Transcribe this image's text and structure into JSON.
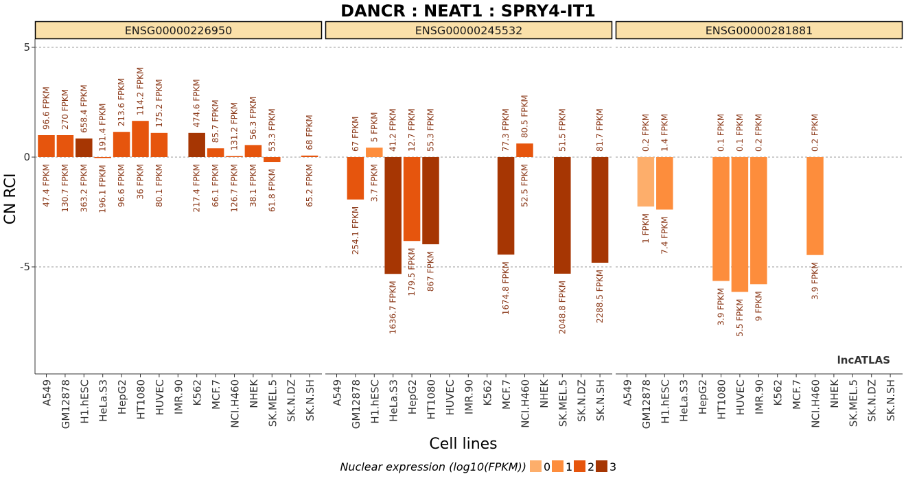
{
  "chart_data": {
    "type": "bar",
    "title": "DANCR : NEAT1 : SPRY4-IT1",
    "xlabel": "Cell lines",
    "ylabel": "CN RCI",
    "ylim": [
      -10,
      5.3
    ],
    "yticks": [
      5,
      0,
      -5
    ],
    "ytick_labels": [
      "5",
      "0",
      "-5"
    ],
    "grid": "horizontal dashed at ticks",
    "watermark": "lncATLAS",
    "legend": {
      "title": "Nuclear expression (log10(FPKM))",
      "placement": "bottom",
      "items": [
        {
          "label": "0",
          "color": "#fdae6b"
        },
        {
          "label": "1",
          "color": "#fd8d3c"
        },
        {
          "label": "2",
          "color": "#e6550d"
        },
        {
          "label": "3",
          "color": "#a63603"
        }
      ]
    },
    "panels": [
      {
        "name": "ENSG00000226950",
        "bars": [
          {
            "cell": "A549",
            "value": 1.0,
            "level": 2,
            "top": "96.6 FPKM",
            "bottom": "47.4 FPKM"
          },
          {
            "cell": "GM12878",
            "value": 1.0,
            "level": 2,
            "top": "270 FPKM",
            "bottom": "130.7 FPKM"
          },
          {
            "cell": "H1.hESC",
            "value": 0.85,
            "level": 3,
            "top": "658.4 FPKM",
            "bottom": "363.2 FPKM"
          },
          {
            "cell": "HeLa.S3",
            "value": -0.04,
            "level": 2,
            "top": "191.4 FPKM",
            "bottom": "196.1 FPKM"
          },
          {
            "cell": "HepG2",
            "value": 1.15,
            "level": 2,
            "top": "213.6 FPKM",
            "bottom": "96.6 FPKM"
          },
          {
            "cell": "HT1080",
            "value": 1.65,
            "level": 2,
            "top": "114.2 FPKM",
            "bottom": "36 FPKM"
          },
          {
            "cell": "HUVEC",
            "value": 1.1,
            "level": 2,
            "top": "175.2 FPKM",
            "bottom": "80.1 FPKM"
          },
          {
            "cell": "IMR.90",
            "value": null,
            "level": null,
            "top": "",
            "bottom": ""
          },
          {
            "cell": "K562",
            "value": 1.1,
            "level": 3,
            "top": "474.6 FPKM",
            "bottom": "217.4 FPKM"
          },
          {
            "cell": "MCF.7",
            "value": 0.4,
            "level": 2,
            "top": "85.7 FPKM",
            "bottom": "66.1 FPKM"
          },
          {
            "cell": "NCI.H460",
            "value": 0.05,
            "level": 2,
            "top": "131.2 FPKM",
            "bottom": "126.7 FPKM"
          },
          {
            "cell": "NHEK",
            "value": 0.55,
            "level": 2,
            "top": "56.3 FPKM",
            "bottom": "38.1 FPKM"
          },
          {
            "cell": "SK.MEL.5",
            "value": -0.22,
            "level": 2,
            "top": "53.3 FPKM",
            "bottom": "61.8 FPKM"
          },
          {
            "cell": "SK.N.DZ",
            "value": null,
            "level": null,
            "top": "",
            "bottom": ""
          },
          {
            "cell": "SK.N.SH",
            "value": 0.07,
            "level": 2,
            "top": "68 FPKM",
            "bottom": "65.2 FPKM"
          }
        ]
      },
      {
        "name": "ENSG00000245532",
        "bars": [
          {
            "cell": "A549",
            "value": null,
            "level": null,
            "top": "",
            "bottom": ""
          },
          {
            "cell": "GM12878",
            "value": -1.93,
            "level": 2,
            "top": "67 FPKM",
            "bottom": "254.1 FPKM"
          },
          {
            "cell": "H1.hESC",
            "value": 0.43,
            "level": 1,
            "top": "5 FPKM",
            "bottom": "3.7 FPKM"
          },
          {
            "cell": "HeLa.S3",
            "value": -5.32,
            "level": 3,
            "top": "41.2 FPKM",
            "bottom": "1636.7 FPKM"
          },
          {
            "cell": "HepG2",
            "value": -3.82,
            "level": 2,
            "top": "12.7 FPKM",
            "bottom": "179.5 FPKM"
          },
          {
            "cell": "HT1080",
            "value": -3.97,
            "level": 3,
            "top": "55.3 FPKM",
            "bottom": "867 FPKM"
          },
          {
            "cell": "HUVEC",
            "value": null,
            "level": null,
            "top": "",
            "bottom": ""
          },
          {
            "cell": "IMR.90",
            "value": null,
            "level": null,
            "top": "",
            "bottom": ""
          },
          {
            "cell": "K562",
            "value": null,
            "level": null,
            "top": "",
            "bottom": ""
          },
          {
            "cell": "MCF.7",
            "value": -4.44,
            "level": 3,
            "top": "77.3 FPKM",
            "bottom": "1674.8 FPKM"
          },
          {
            "cell": "NCI.H460",
            "value": 0.62,
            "level": 2,
            "top": "80.5 FPKM",
            "bottom": "52.5 FPKM"
          },
          {
            "cell": "NHEK",
            "value": null,
            "level": null,
            "top": "",
            "bottom": ""
          },
          {
            "cell": "SK.MEL.5",
            "value": -5.31,
            "level": 3,
            "top": "51.5 FPKM",
            "bottom": "2048.8 FPKM"
          },
          {
            "cell": "SK.N.DZ",
            "value": null,
            "level": null,
            "top": "",
            "bottom": ""
          },
          {
            "cell": "SK.N.SH",
            "value": -4.81,
            "level": 3,
            "top": "81.7 FPKM",
            "bottom": "2288.5 FPKM"
          }
        ]
      },
      {
        "name": "ENSG00000281881",
        "bars": [
          {
            "cell": "A549",
            "value": null,
            "level": null,
            "top": "",
            "bottom": ""
          },
          {
            "cell": "GM12878",
            "value": -2.25,
            "level": 0,
            "top": "0.2 FPKM",
            "bottom": "1 FPKM"
          },
          {
            "cell": "H1.hESC",
            "value": -2.39,
            "level": 1,
            "top": "1.4 FPKM",
            "bottom": "7.4 FPKM"
          },
          {
            "cell": "HeLa.S3",
            "value": null,
            "level": null,
            "top": "",
            "bottom": ""
          },
          {
            "cell": "HepG2",
            "value": null,
            "level": null,
            "top": "",
            "bottom": ""
          },
          {
            "cell": "HT1080",
            "value": -5.64,
            "level": 1,
            "top": "0.1 FPKM",
            "bottom": "3.9 FPKM"
          },
          {
            "cell": "HUVEC",
            "value": -6.14,
            "level": 1,
            "top": "0.1 FPKM",
            "bottom": "5.5 FPKM"
          },
          {
            "cell": "IMR.90",
            "value": -5.79,
            "level": 1,
            "top": "0.2 FPKM",
            "bottom": "9 FPKM"
          },
          {
            "cell": "K562",
            "value": null,
            "level": null,
            "top": "",
            "bottom": ""
          },
          {
            "cell": "MCF.7",
            "value": null,
            "level": null,
            "top": "",
            "bottom": ""
          },
          {
            "cell": "NCI.H460",
            "value": -4.46,
            "level": 1,
            "top": "0.2 FPKM",
            "bottom": "3.9 FPKM"
          },
          {
            "cell": "NHEK",
            "value": null,
            "level": null,
            "top": "",
            "bottom": ""
          },
          {
            "cell": "SK.MEL.5",
            "value": null,
            "level": null,
            "top": "",
            "bottom": ""
          },
          {
            "cell": "SK.N.DZ",
            "value": null,
            "level": null,
            "top": "",
            "bottom": ""
          },
          {
            "cell": "SK.N.SH",
            "value": null,
            "level": null,
            "top": "",
            "bottom": ""
          }
        ]
      }
    ]
  }
}
